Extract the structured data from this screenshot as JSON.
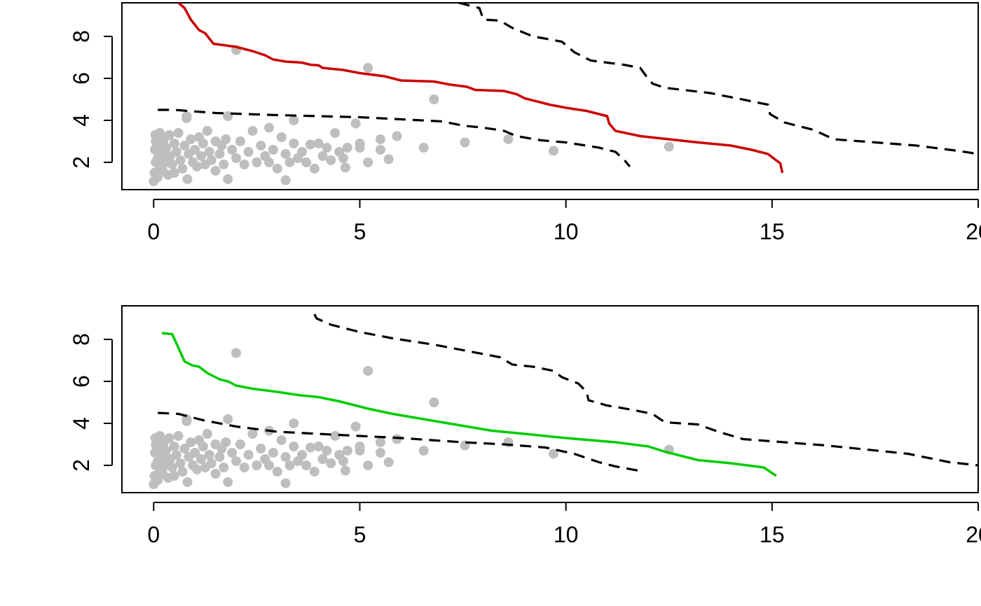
{
  "chart_data": [
    {
      "type": "scatter",
      "title": "",
      "xlabel": "",
      "ylabel": "",
      "xlim": [
        -0.77,
        20.0
      ],
      "ylim": [
        0.7,
        9.6
      ],
      "x_ticks": [
        "0",
        "5",
        "10",
        "15",
        "20"
      ],
      "y_ticks": [
        "2",
        "4",
        "6",
        "8"
      ],
      "grid": false,
      "legend": "none",
      "colors": {
        "points": "#bebebe",
        "fit": "#cc0000",
        "band": "#000000"
      },
      "points": [
        [
          0.0,
          1.1
        ],
        [
          0.02,
          1.5
        ],
        [
          0.05,
          2.0
        ],
        [
          0.03,
          2.6
        ],
        [
          0.05,
          3.0
        ],
        [
          0.04,
          3.3
        ],
        [
          0.1,
          1.3
        ],
        [
          0.1,
          2.2
        ],
        [
          0.12,
          2.8
        ],
        [
          0.15,
          1.8
        ],
        [
          0.15,
          3.4
        ],
        [
          0.2,
          2.4
        ],
        [
          0.22,
          1.6
        ],
        [
          0.25,
          3.1
        ],
        [
          0.3,
          2.0
        ],
        [
          0.3,
          2.7
        ],
        [
          0.35,
          1.4
        ],
        [
          0.38,
          3.3
        ],
        [
          0.4,
          2.3
        ],
        [
          0.45,
          1.9
        ],
        [
          0.5,
          2.9
        ],
        [
          0.5,
          1.5
        ],
        [
          0.55,
          2.5
        ],
        [
          0.6,
          3.4
        ],
        [
          0.65,
          2.1
        ],
        [
          0.7,
          1.7
        ],
        [
          0.75,
          2.8
        ],
        [
          0.8,
          4.1
        ],
        [
          0.8,
          4.2
        ],
        [
          0.85,
          2.4
        ],
        [
          0.82,
          1.2
        ],
        [
          0.9,
          3.1
        ],
        [
          0.95,
          2.0
        ],
        [
          1.0,
          2.6
        ],
        [
          1.05,
          1.8
        ],
        [
          1.1,
          3.2
        ],
        [
          1.15,
          2.3
        ],
        [
          1.2,
          2.9
        ],
        [
          1.25,
          1.9
        ],
        [
          1.3,
          3.5
        ],
        [
          1.35,
          2.5
        ],
        [
          1.4,
          2.1
        ],
        [
          1.5,
          1.6
        ],
        [
          1.5,
          3.0
        ],
        [
          1.6,
          2.4
        ],
        [
          1.65,
          2.8
        ],
        [
          1.7,
          1.9
        ],
        [
          1.75,
          3.1
        ],
        [
          1.8,
          4.2
        ],
        [
          1.8,
          1.2
        ],
        [
          1.9,
          2.6
        ],
        [
          2.0,
          7.35
        ],
        [
          2.0,
          2.2
        ],
        [
          2.1,
          3.0
        ],
        [
          2.2,
          1.9
        ],
        [
          2.3,
          2.5
        ],
        [
          2.4,
          3.5
        ],
        [
          2.5,
          2.0
        ],
        [
          2.6,
          2.8
        ],
        [
          2.7,
          2.3
        ],
        [
          2.8,
          3.65
        ],
        [
          2.8,
          2.0
        ],
        [
          2.9,
          2.6
        ],
        [
          3.0,
          1.7
        ],
        [
          3.1,
          3.2
        ],
        [
          3.2,
          1.15
        ],
        [
          3.2,
          2.4
        ],
        [
          3.3,
          2.0
        ],
        [
          3.4,
          4.0
        ],
        [
          3.4,
          2.9
        ],
        [
          3.5,
          2.2
        ],
        [
          3.6,
          2.5
        ],
        [
          3.7,
          2.0
        ],
        [
          3.8,
          2.85
        ],
        [
          3.9,
          1.7
        ],
        [
          4.0,
          2.9
        ],
        [
          4.1,
          2.3
        ],
        [
          4.2,
          2.7
        ],
        [
          4.3,
          2.1
        ],
        [
          4.4,
          3.4
        ],
        [
          4.5,
          2.5
        ],
        [
          4.6,
          2.2
        ],
        [
          4.65,
          1.75
        ],
        [
          4.7,
          2.7
        ],
        [
          4.9,
          3.85
        ],
        [
          5.0,
          2.9
        ],
        [
          5.0,
          2.7
        ],
        [
          5.2,
          6.5
        ],
        [
          5.2,
          2.0
        ],
        [
          5.5,
          2.6
        ],
        [
          5.5,
          3.1
        ],
        [
          5.7,
          2.15
        ],
        [
          5.9,
          3.25
        ],
        [
          6.55,
          2.7
        ],
        [
          6.8,
          5.0
        ],
        [
          7.55,
          2.95
        ],
        [
          8.6,
          3.1
        ],
        [
          9.7,
          2.55
        ],
        [
          12.5,
          2.75
        ]
      ],
      "fit_line": [
        [
          0.6,
          9.6
        ],
        [
          0.75,
          9.35
        ],
        [
          0.9,
          8.8
        ],
        [
          1.1,
          8.3
        ],
        [
          1.25,
          8.15
        ],
        [
          1.45,
          7.65
        ],
        [
          2.0,
          7.5
        ],
        [
          2.4,
          7.3
        ],
        [
          2.7,
          7.1
        ],
        [
          2.9,
          6.9
        ],
        [
          3.2,
          6.8
        ],
        [
          3.6,
          6.75
        ],
        [
          3.8,
          6.65
        ],
        [
          4.0,
          6.62
        ],
        [
          4.1,
          6.5
        ],
        [
          4.6,
          6.4
        ],
        [
          5.0,
          6.25
        ],
        [
          5.6,
          6.1
        ],
        [
          6.0,
          5.9
        ],
        [
          6.8,
          5.85
        ],
        [
          7.2,
          5.7
        ],
        [
          7.6,
          5.6
        ],
        [
          7.8,
          5.45
        ],
        [
          8.5,
          5.4
        ],
        [
          8.8,
          5.25
        ],
        [
          9.0,
          5.05
        ],
        [
          9.6,
          4.75
        ],
        [
          10.0,
          4.6
        ],
        [
          10.5,
          4.45
        ],
        [
          11.0,
          4.2
        ],
        [
          11.05,
          3.85
        ],
        [
          11.2,
          3.5
        ],
        [
          11.8,
          3.25
        ],
        [
          12.5,
          3.1
        ],
        [
          13.2,
          2.95
        ],
        [
          14.0,
          2.8
        ],
        [
          14.5,
          2.6
        ],
        [
          14.9,
          2.4
        ],
        [
          15.2,
          1.95
        ],
        [
          15.25,
          1.5
        ]
      ],
      "upper_band": [
        [
          7.4,
          9.6
        ],
        [
          7.9,
          9.35
        ],
        [
          8.0,
          8.8
        ],
        [
          8.4,
          8.75
        ],
        [
          8.7,
          8.4
        ],
        [
          9.2,
          8.0
        ],
        [
          9.9,
          7.75
        ],
        [
          10.2,
          7.25
        ],
        [
          10.6,
          6.85
        ],
        [
          11.4,
          6.65
        ],
        [
          11.8,
          6.5
        ],
        [
          11.95,
          6.1
        ],
        [
          12.1,
          5.75
        ],
        [
          12.4,
          5.55
        ],
        [
          13.5,
          5.3
        ],
        [
          14.4,
          4.95
        ],
        [
          14.9,
          4.75
        ],
        [
          14.95,
          4.3
        ],
        [
          15.3,
          3.9
        ],
        [
          16.0,
          3.55
        ],
        [
          16.5,
          3.1
        ],
        [
          17.5,
          2.95
        ],
        [
          18.5,
          2.8
        ],
        [
          19.5,
          2.55
        ],
        [
          20.0,
          2.4
        ]
      ],
      "lower_band": [
        [
          0.1,
          4.5
        ],
        [
          0.5,
          4.5
        ],
        [
          1.5,
          4.35
        ],
        [
          3.0,
          4.25
        ],
        [
          5.0,
          4.15
        ],
        [
          6.0,
          4.05
        ],
        [
          7.0,
          3.95
        ],
        [
          7.5,
          3.75
        ],
        [
          8.0,
          3.65
        ],
        [
          8.5,
          3.5
        ],
        [
          8.8,
          3.25
        ],
        [
          9.4,
          3.05
        ],
        [
          10.0,
          2.95
        ],
        [
          10.8,
          2.7
        ],
        [
          11.2,
          2.5
        ],
        [
          11.4,
          2.15
        ],
        [
          11.55,
          1.8
        ]
      ]
    },
    {
      "type": "scatter",
      "title": "",
      "xlabel": "",
      "ylabel": "",
      "xlim": [
        -0.77,
        20.0
      ],
      "ylim": [
        0.7,
        9.6
      ],
      "x_ticks": [
        "0",
        "5",
        "10",
        "15",
        "20"
      ],
      "y_ticks": [
        "2",
        "4",
        "6",
        "8"
      ],
      "grid": false,
      "legend": "none",
      "colors": {
        "points": "#bebebe",
        "fit": "#00cc00",
        "band": "#000000"
      },
      "points": [
        [
          0.0,
          1.1
        ],
        [
          0.02,
          1.5
        ],
        [
          0.05,
          2.0
        ],
        [
          0.03,
          2.6
        ],
        [
          0.05,
          3.0
        ],
        [
          0.04,
          3.3
        ],
        [
          0.1,
          1.3
        ],
        [
          0.1,
          2.2
        ],
        [
          0.12,
          2.8
        ],
        [
          0.15,
          1.8
        ],
        [
          0.15,
          3.4
        ],
        [
          0.2,
          2.4
        ],
        [
          0.22,
          1.6
        ],
        [
          0.25,
          3.1
        ],
        [
          0.3,
          2.0
        ],
        [
          0.3,
          2.7
        ],
        [
          0.35,
          1.4
        ],
        [
          0.38,
          3.3
        ],
        [
          0.4,
          2.3
        ],
        [
          0.45,
          1.9
        ],
        [
          0.5,
          2.9
        ],
        [
          0.5,
          1.5
        ],
        [
          0.55,
          2.5
        ],
        [
          0.6,
          3.4
        ],
        [
          0.65,
          2.1
        ],
        [
          0.7,
          1.7
        ],
        [
          0.75,
          2.8
        ],
        [
          0.8,
          4.1
        ],
        [
          0.8,
          4.2
        ],
        [
          0.85,
          2.4
        ],
        [
          0.82,
          1.2
        ],
        [
          0.9,
          3.1
        ],
        [
          0.95,
          2.0
        ],
        [
          1.0,
          2.6
        ],
        [
          1.05,
          1.8
        ],
        [
          1.1,
          3.2
        ],
        [
          1.15,
          2.3
        ],
        [
          1.2,
          2.9
        ],
        [
          1.25,
          1.9
        ],
        [
          1.3,
          3.5
        ],
        [
          1.35,
          2.5
        ],
        [
          1.4,
          2.1
        ],
        [
          1.5,
          1.6
        ],
        [
          1.5,
          3.0
        ],
        [
          1.6,
          2.4
        ],
        [
          1.65,
          2.8
        ],
        [
          1.7,
          1.9
        ],
        [
          1.75,
          3.1
        ],
        [
          1.8,
          4.2
        ],
        [
          1.8,
          1.2
        ],
        [
          1.9,
          2.6
        ],
        [
          2.0,
          7.35
        ],
        [
          2.0,
          2.2
        ],
        [
          2.1,
          3.0
        ],
        [
          2.2,
          1.9
        ],
        [
          2.3,
          2.5
        ],
        [
          2.4,
          3.5
        ],
        [
          2.5,
          2.0
        ],
        [
          2.6,
          2.8
        ],
        [
          2.7,
          2.3
        ],
        [
          2.8,
          3.65
        ],
        [
          2.8,
          2.0
        ],
        [
          2.9,
          2.6
        ],
        [
          3.0,
          1.7
        ],
        [
          3.1,
          3.2
        ],
        [
          3.2,
          1.15
        ],
        [
          3.2,
          2.4
        ],
        [
          3.3,
          2.0
        ],
        [
          3.4,
          4.0
        ],
        [
          3.4,
          2.9
        ],
        [
          3.5,
          2.2
        ],
        [
          3.6,
          2.5
        ],
        [
          3.7,
          2.0
        ],
        [
          3.8,
          2.85
        ],
        [
          3.9,
          1.7
        ],
        [
          4.0,
          2.9
        ],
        [
          4.1,
          2.3
        ],
        [
          4.2,
          2.7
        ],
        [
          4.3,
          2.1
        ],
        [
          4.4,
          3.4
        ],
        [
          4.5,
          2.5
        ],
        [
          4.6,
          2.2
        ],
        [
          4.65,
          1.75
        ],
        [
          4.7,
          2.7
        ],
        [
          4.9,
          3.85
        ],
        [
          5.0,
          2.9
        ],
        [
          5.0,
          2.7
        ],
        [
          5.2,
          6.5
        ],
        [
          5.2,
          2.0
        ],
        [
          5.5,
          2.6
        ],
        [
          5.5,
          3.1
        ],
        [
          5.7,
          2.15
        ],
        [
          5.9,
          3.25
        ],
        [
          6.55,
          2.7
        ],
        [
          6.8,
          5.0
        ],
        [
          7.55,
          2.95
        ],
        [
          8.6,
          3.1
        ],
        [
          9.7,
          2.55
        ],
        [
          12.5,
          2.75
        ]
      ],
      "fit_line": [
        [
          0.2,
          8.3
        ],
        [
          0.45,
          8.25
        ],
        [
          0.6,
          7.6
        ],
        [
          0.75,
          6.95
        ],
        [
          0.95,
          6.75
        ],
        [
          1.1,
          6.7
        ],
        [
          1.3,
          6.4
        ],
        [
          1.6,
          6.1
        ],
        [
          1.8,
          6.0
        ],
        [
          2.0,
          5.8
        ],
        [
          2.4,
          5.65
        ],
        [
          3.0,
          5.5
        ],
        [
          3.5,
          5.35
        ],
        [
          4.0,
          5.25
        ],
        [
          4.5,
          5.05
        ],
        [
          4.9,
          4.85
        ],
        [
          5.2,
          4.7
        ],
        [
          5.8,
          4.45
        ],
        [
          6.4,
          4.25
        ],
        [
          7.0,
          4.05
        ],
        [
          7.6,
          3.85
        ],
        [
          8.2,
          3.65
        ],
        [
          9.0,
          3.5
        ],
        [
          10.0,
          3.3
        ],
        [
          11.2,
          3.1
        ],
        [
          12.0,
          2.9
        ],
        [
          12.4,
          2.65
        ],
        [
          13.2,
          2.25
        ],
        [
          14.0,
          2.1
        ],
        [
          14.8,
          1.9
        ],
        [
          15.1,
          1.5
        ]
      ],
      "upper_band": [
        [
          3.9,
          9.2
        ],
        [
          3.95,
          9.0
        ],
        [
          4.3,
          8.7
        ],
        [
          5.0,
          8.35
        ],
        [
          5.8,
          8.05
        ],
        [
          6.8,
          7.75
        ],
        [
          7.6,
          7.45
        ],
        [
          8.4,
          7.15
        ],
        [
          8.7,
          6.8
        ],
        [
          9.2,
          6.7
        ],
        [
          9.7,
          6.5
        ],
        [
          9.9,
          6.2
        ],
        [
          10.1,
          6.05
        ],
        [
          10.3,
          5.9
        ],
        [
          10.5,
          5.5
        ],
        [
          10.55,
          5.1
        ],
        [
          11.0,
          4.85
        ],
        [
          11.6,
          4.65
        ],
        [
          12.1,
          4.45
        ],
        [
          12.4,
          4.05
        ],
        [
          13.2,
          3.95
        ],
        [
          13.7,
          3.6
        ],
        [
          14.3,
          3.25
        ],
        [
          15.3,
          3.1
        ],
        [
          16.3,
          2.95
        ],
        [
          17.3,
          2.75
        ],
        [
          18.3,
          2.55
        ],
        [
          19.3,
          2.15
        ],
        [
          20.0,
          2.0
        ]
      ],
      "lower_band": [
        [
          0.1,
          4.5
        ],
        [
          0.6,
          4.45
        ],
        [
          1.2,
          4.15
        ],
        [
          2.0,
          3.85
        ],
        [
          3.0,
          3.6
        ],
        [
          4.5,
          3.45
        ],
        [
          6.0,
          3.3
        ],
        [
          7.5,
          3.1
        ],
        [
          8.5,
          3.0
        ],
        [
          9.5,
          2.85
        ],
        [
          10.2,
          2.55
        ],
        [
          10.8,
          2.15
        ],
        [
          11.2,
          1.95
        ],
        [
          11.75,
          1.75
        ]
      ]
    }
  ]
}
